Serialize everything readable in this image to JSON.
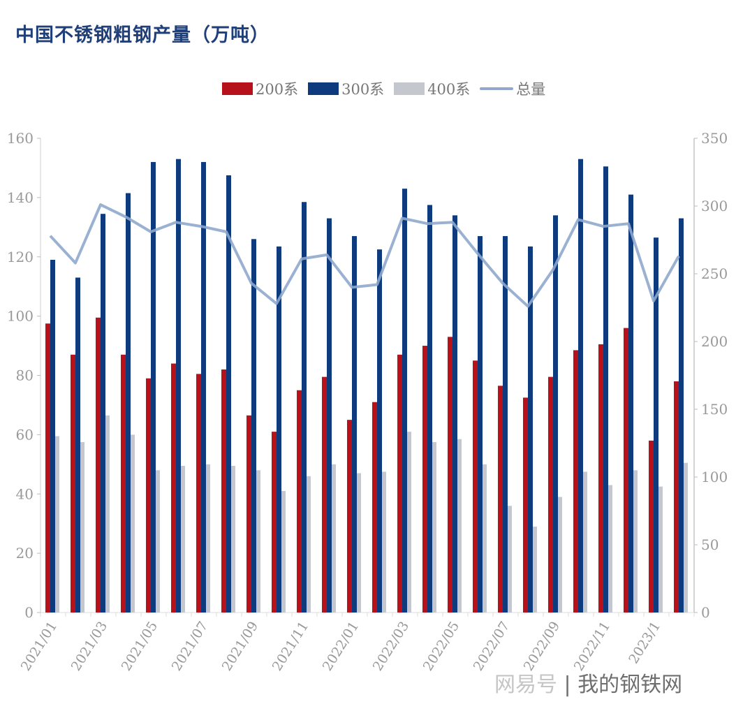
{
  "title": "中国不锈钢粗钢产量（万吨）",
  "watermark": {
    "left": "网易号",
    "right": "我的钢铁网"
  },
  "chart_data": {
    "type": "bar+line",
    "title": "中国不锈钢粗钢产量（万吨）",
    "legend_position": "top",
    "grid": false,
    "categories": [
      "2021/01",
      "2021/02",
      "2021/03",
      "2021/04",
      "2021/05",
      "2021/06",
      "2021/07",
      "2021/08",
      "2021/09",
      "2021/10",
      "2021/11",
      "2021/12",
      "2022/01",
      "2022/02",
      "2022/03",
      "2022/04",
      "2022/05",
      "2022/06",
      "2022/07",
      "2022/08",
      "2022/09",
      "2022/10",
      "2022/11",
      "2022/12",
      "2023/1",
      "2023/02"
    ],
    "tick_labels": [
      "2021/01",
      "2021/03",
      "2021/05",
      "2021/07",
      "2021/09",
      "2021/11",
      "2022/01",
      "2022/03",
      "2022/05",
      "2022/07",
      "2022/09",
      "2022/11",
      "2023/1"
    ],
    "y_left": {
      "range": [
        0,
        160
      ],
      "ticks": [
        0,
        20,
        40,
        60,
        80,
        100,
        120,
        140,
        160
      ]
    },
    "y_right": {
      "range": [
        0,
        350
      ],
      "ticks": [
        0,
        50,
        100,
        150,
        200,
        250,
        300,
        350
      ]
    },
    "series": [
      {
        "name": "200系",
        "type": "bar",
        "axis": "left",
        "color": "#b5121b",
        "values": [
          97.5,
          87,
          99.5,
          87,
          79,
          84,
          80.5,
          82,
          66.5,
          61,
          75,
          79.5,
          65,
          71,
          87,
          90,
          93,
          85,
          76.5,
          72.5,
          79.5,
          88.5,
          90.5,
          96,
          58,
          78
        ]
      },
      {
        "name": "300系",
        "type": "bar",
        "axis": "left",
        "color": "#0d3b7d",
        "values": [
          119,
          113,
          134.5,
          141.5,
          152,
          153,
          152,
          147.5,
          126,
          123.5,
          138.5,
          133,
          127,
          122.5,
          143,
          137.5,
          134,
          127,
          127,
          123.5,
          134,
          153,
          150.5,
          141,
          126.5,
          133
        ]
      },
      {
        "name": "400系",
        "type": "bar",
        "axis": "left",
        "color": "#c4c8ce",
        "values": [
          59.5,
          57.5,
          66.5,
          60,
          48,
          49.5,
          50,
          49.5,
          48,
          41,
          46,
          50,
          47,
          47.5,
          61,
          57.5,
          58.5,
          50,
          36,
          29,
          39,
          47.5,
          43,
          48,
          42.5,
          50.5
        ]
      },
      {
        "name": "总量",
        "type": "line",
        "axis": "right",
        "color": "#8fa8cc",
        "values": [
          278,
          258,
          301,
          292,
          281,
          288,
          285,
          281,
          243,
          228,
          261,
          264,
          240,
          242,
          291,
          287,
          288,
          265,
          243,
          226,
          253,
          290,
          285,
          287,
          230,
          263
        ]
      }
    ]
  }
}
